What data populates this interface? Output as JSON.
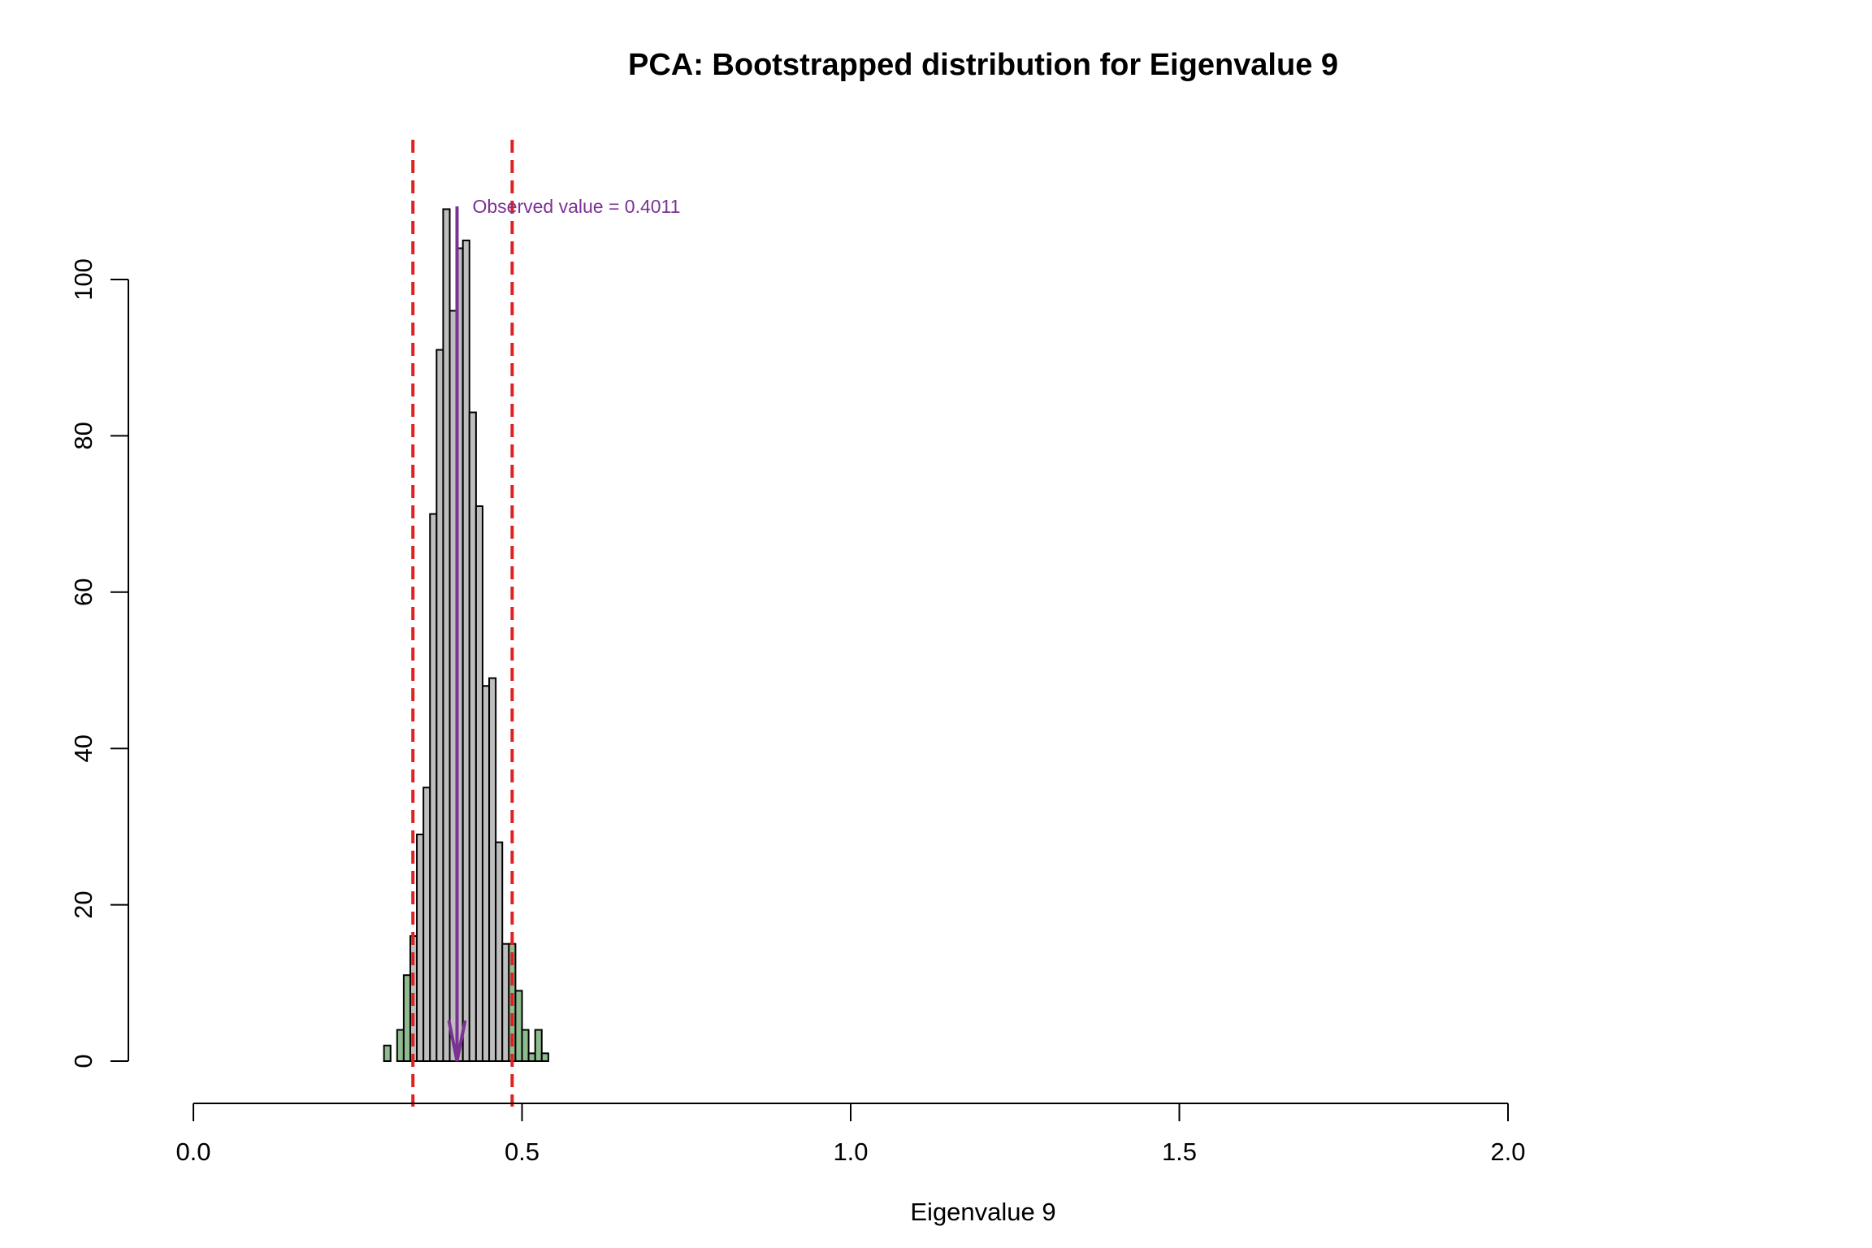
{
  "chart_data": {
    "type": "bar",
    "title": "PCA: Bootstrapped distribution for Eigenvalue 9",
    "xlabel": "Eigenvalue 9",
    "ylabel": "",
    "xlim": [
      0,
      2
    ],
    "ylim": [
      0,
      100
    ],
    "x_ticks": [
      {
        "value": 0.0,
        "label": "0.0"
      },
      {
        "value": 0.5,
        "label": "0.5"
      },
      {
        "value": 1.0,
        "label": "1.0"
      },
      {
        "value": 1.5,
        "label": "1.5"
      },
      {
        "value": 2.0,
        "label": "2.0"
      }
    ],
    "y_ticks": [
      {
        "value": 0,
        "label": "0"
      },
      {
        "value": 20,
        "label": "20"
      },
      {
        "value": 40,
        "label": "40"
      },
      {
        "value": 60,
        "label": "60"
      },
      {
        "value": 80,
        "label": "80"
      },
      {
        "value": 100,
        "label": "100"
      }
    ],
    "bin_width": 0.01,
    "bins": [
      {
        "start": 0.29,
        "count": 2,
        "tail": true
      },
      {
        "start": 0.3,
        "count": 0,
        "tail": true
      },
      {
        "start": 0.31,
        "count": 4,
        "tail": true
      },
      {
        "start": 0.32,
        "count": 11,
        "tail": true
      },
      {
        "start": 0.33,
        "count": 16,
        "tail": false
      },
      {
        "start": 0.34,
        "count": 29,
        "tail": false
      },
      {
        "start": 0.35,
        "count": 35,
        "tail": false
      },
      {
        "start": 0.36,
        "count": 70,
        "tail": false
      },
      {
        "start": 0.37,
        "count": 91,
        "tail": false
      },
      {
        "start": 0.38,
        "count": 109,
        "tail": false
      },
      {
        "start": 0.39,
        "count": 96,
        "tail": false
      },
      {
        "start": 0.4,
        "count": 104,
        "tail": false
      },
      {
        "start": 0.41,
        "count": 105,
        "tail": false
      },
      {
        "start": 0.42,
        "count": 83,
        "tail": false
      },
      {
        "start": 0.43,
        "count": 71,
        "tail": false
      },
      {
        "start": 0.44,
        "count": 48,
        "tail": false
      },
      {
        "start": 0.45,
        "count": 49,
        "tail": false
      },
      {
        "start": 0.46,
        "count": 28,
        "tail": false
      },
      {
        "start": 0.47,
        "count": 15,
        "tail": false
      },
      {
        "start": 0.48,
        "count": 15,
        "tail": true
      },
      {
        "start": 0.49,
        "count": 9,
        "tail": true
      },
      {
        "start": 0.5,
        "count": 4,
        "tail": true
      },
      {
        "start": 0.51,
        "count": 1,
        "tail": true
      },
      {
        "start": 0.52,
        "count": 4,
        "tail": true
      },
      {
        "start": 0.53,
        "count": 1,
        "tail": true
      }
    ],
    "ci_lines": [
      0.334,
      0.485
    ],
    "observed": {
      "value": 0.4011,
      "label": "Observed value = 0.4011"
    },
    "colors": {
      "bar_fill": "#bebebe",
      "tail_fill": "#8fbc8f",
      "bar_stroke": "#000000",
      "ci_line": "#dd2222",
      "observed": "#7b3294"
    },
    "grid": false,
    "legend": "none"
  }
}
